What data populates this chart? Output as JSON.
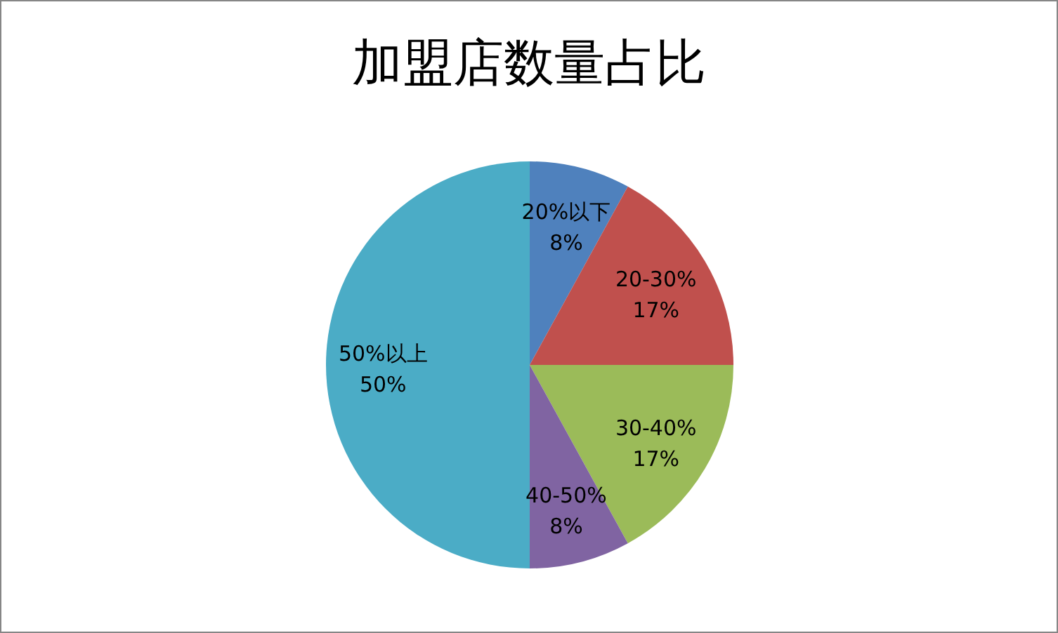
{
  "chart_data": {
    "type": "pie",
    "title": "加盟店数量占比",
    "categories": [
      "20%以下",
      "20-30%",
      "30-40%",
      "40-50%",
      "50%以上"
    ],
    "values": [
      8,
      17,
      17,
      8,
      50
    ],
    "value_labels": [
      "8%",
      "17%",
      "17%",
      "8%",
      "50%"
    ],
    "colors": [
      "#4f81bd",
      "#c0504d",
      "#9bbb59",
      "#8064a2",
      "#4bacc6"
    ]
  }
}
